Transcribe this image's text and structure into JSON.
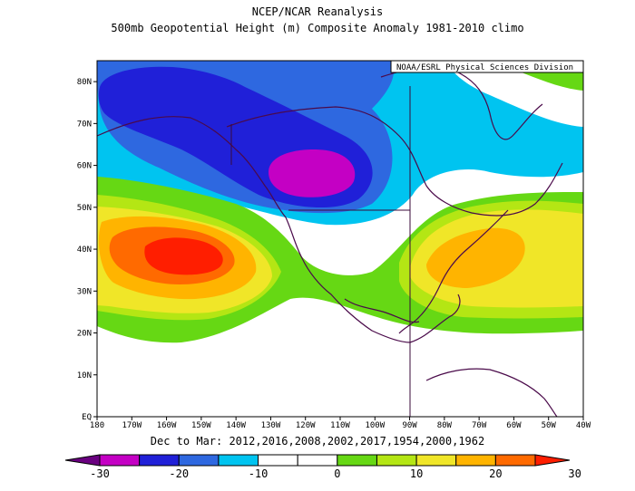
{
  "title_line1": "NCEP/NCAR Reanalysis",
  "title_line2": "500mb Geopotential Height (m) Composite Anomaly 1981-2010 climo",
  "credit": "NOAA/ESRL Physical Sciences Division",
  "subtitle": "Dec to Mar: 2012,2016,2008,2002,2017,1954,2000,1962",
  "lat_labels": [
    "EQ",
    "10N",
    "20N",
    "30N",
    "40N",
    "50N",
    "60N",
    "70N",
    "80N"
  ],
  "lon_labels": [
    "180",
    "170W",
    "160W",
    "150W",
    "140W",
    "130W",
    "120W",
    "110W",
    "100W",
    "90W",
    "80W",
    "70W",
    "60W",
    "50W",
    "40W"
  ],
  "colorbar": {
    "labels": [
      "-30",
      "-20",
      "-10",
      "0",
      "10",
      "20",
      "30"
    ],
    "colors": [
      "#6a0080",
      "#c400c4",
      "#2020d8",
      "#2e68e0",
      "#00c4f0",
      "#ffffff",
      "#ffffff",
      "#66d814",
      "#b4e614",
      "#f0e628",
      "#ffb400",
      "#ff6a00",
      "#ff1e00"
    ]
  },
  "map": {
    "lat_range": [
      0,
      85
    ],
    "lon_range": [
      -180,
      -40
    ],
    "features": {
      "negative_center": {
        "lon": -120,
        "lat": 58
      },
      "positive_center_pacific": {
        "lon": -155,
        "lat": 40
      },
      "positive_center_atlantic": {
        "lon": -72,
        "lat": 38
      }
    }
  }
}
